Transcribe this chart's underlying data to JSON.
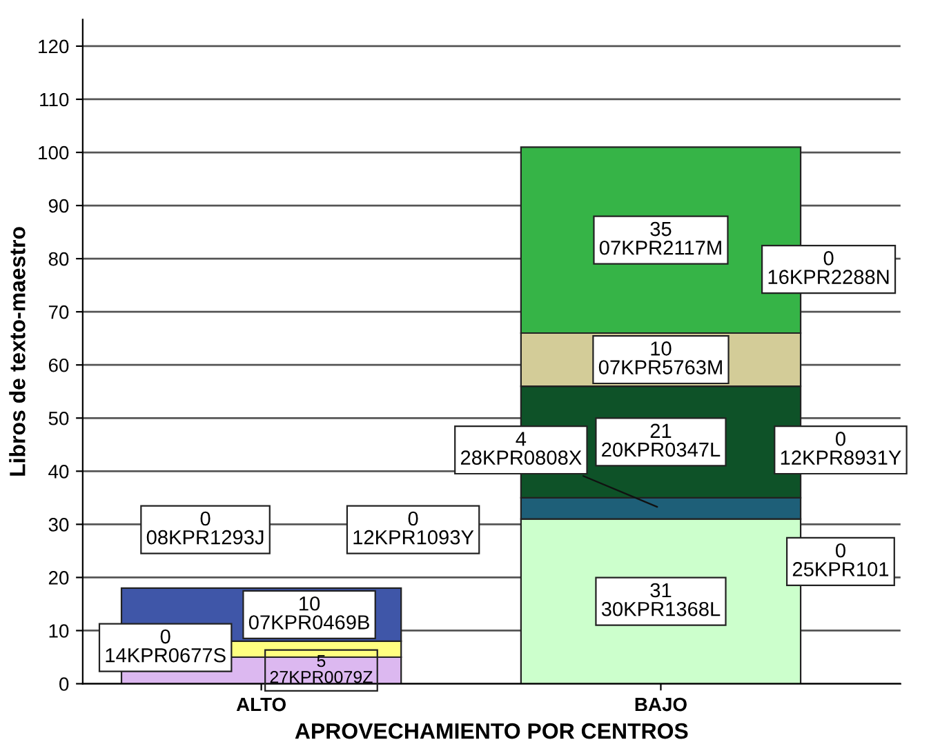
{
  "chart_data": {
    "type": "bar",
    "stacked": true,
    "xlabel": "APROVECHAMIENTO POR CENTROS",
    "ylabel": "Libros de texto-maestro",
    "categories": [
      "ALTO",
      "BAJO"
    ],
    "ylim": [
      0,
      125
    ],
    "yticks": [
      0,
      10,
      20,
      30,
      40,
      50,
      60,
      70,
      80,
      90,
      100,
      110,
      120
    ],
    "grid": "y",
    "series": [
      {
        "name": "27KPR0079Z",
        "color": "#dcb8f0",
        "values": [
          5,
          null
        ],
        "value_labels": [
          "5",
          null
        ]
      },
      {
        "color": "#ffff80",
        "values": [
          3,
          null
        ],
        "value_labels": [
          null,
          null
        ]
      },
      {
        "name": "07KPR0469B",
        "color": "#3f56a8",
        "values": [
          10,
          null
        ],
        "value_labels": [
          "10",
          null
        ]
      },
      {
        "name": "30KPR1368L",
        "color": "#ccffcc",
        "values": [
          null,
          31
        ],
        "value_labels": [
          null,
          "31"
        ]
      },
      {
        "name": "28KPR0808X",
        "color": "#1e5f78",
        "values": [
          null,
          4
        ],
        "value_labels": [
          null,
          "4"
        ]
      },
      {
        "name": "20KPR0347L",
        "color": "#0e5228",
        "values": [
          null,
          21
        ],
        "value_labels": [
          null,
          "21"
        ]
      },
      {
        "name": "07KPR5763M",
        "color": "#d3cc98",
        "values": [
          null,
          10
        ],
        "value_labels": [
          null,
          "10"
        ]
      },
      {
        "name": "07KPR2117M",
        "color": "#36b447",
        "values": [
          null,
          35
        ],
        "value_labels": [
          null,
          "35"
        ]
      }
    ],
    "annotations": [
      "0\n14KPR0677S",
      "0\n12KPR1093Y",
      "0\n08KPR1293J",
      "0\n16KPR2288N",
      "0\n12KPR8931Y",
      "0\n25KPR101"
    ]
  }
}
